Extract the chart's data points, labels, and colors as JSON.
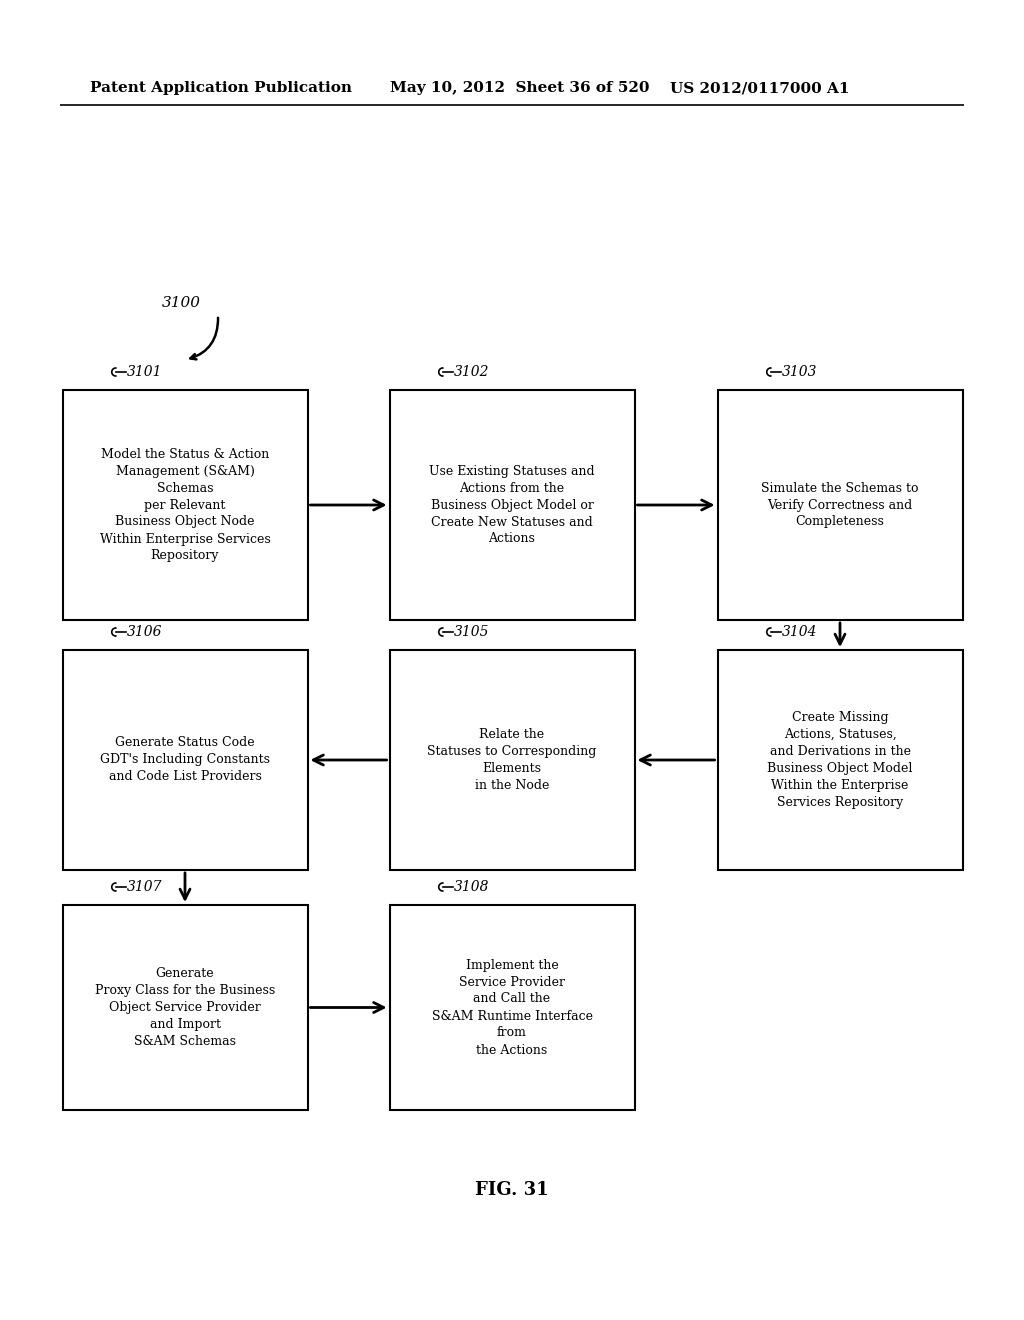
{
  "bg_color": "#ffffff",
  "header_text1": "Patent Application Publication",
  "header_text2": "May 10, 2012  Sheet 36 of 520",
  "header_text3": "US 2012/0117000 A1",
  "fig_label": "FIG. 31",
  "flow_label": "3100",
  "boxes": [
    {
      "id": "3101",
      "label": "3101",
      "text": "Model the Status & Action\nManagement (S&AM)\nSchemas\nper Relevant\nBusiness Object Node\nWithin Enterprise Services\nRepository",
      "col": 0,
      "row": 0
    },
    {
      "id": "3102",
      "label": "3102",
      "text": "Use Existing Statuses and\nActions from the\nBusiness Object Model or\nCreate New Statuses and\nActions",
      "col": 1,
      "row": 0
    },
    {
      "id": "3103",
      "label": "3103",
      "text": "Simulate the Schemas to\nVerify Correctness and\nCompleteness",
      "col": 2,
      "row": 0
    },
    {
      "id": "3104",
      "label": "3104",
      "text": "Create Missing\nActions, Statuses,\nand Derivations in the\nBusiness Object Model\nWithin the Enterprise\nServices Repository",
      "col": 2,
      "row": 1
    },
    {
      "id": "3105",
      "label": "3105",
      "text": "Relate the\nStatuses to Corresponding\nElements\nin the Node",
      "col": 1,
      "row": 1
    },
    {
      "id": "3106",
      "label": "3106",
      "text": "Generate Status Code\nGDT's Including Constants\nand Code List Providers",
      "col": 0,
      "row": 1
    },
    {
      "id": "3107",
      "label": "3107",
      "text": "Generate\nProxy Class for the Business\nObject Service Provider\nand Import\nS&AM Schemas",
      "col": 0,
      "row": 2
    },
    {
      "id": "3108",
      "label": "3108",
      "text": "Implement the\nService Provider\nand Call the\nS&AM Runtime Interface\nfrom\nthe Actions",
      "col": 1,
      "row": 2
    }
  ],
  "arrows": [
    {
      "from": "3101",
      "to": "3102",
      "direction": "right"
    },
    {
      "from": "3102",
      "to": "3103",
      "direction": "right"
    },
    {
      "from": "3103",
      "to": "3104",
      "direction": "down"
    },
    {
      "from": "3104",
      "to": "3105",
      "direction": "left"
    },
    {
      "from": "3105",
      "to": "3106",
      "direction": "left"
    },
    {
      "from": "3106",
      "to": "3107",
      "direction": "down"
    },
    {
      "from": "3107",
      "to": "3108",
      "direction": "right"
    }
  ]
}
